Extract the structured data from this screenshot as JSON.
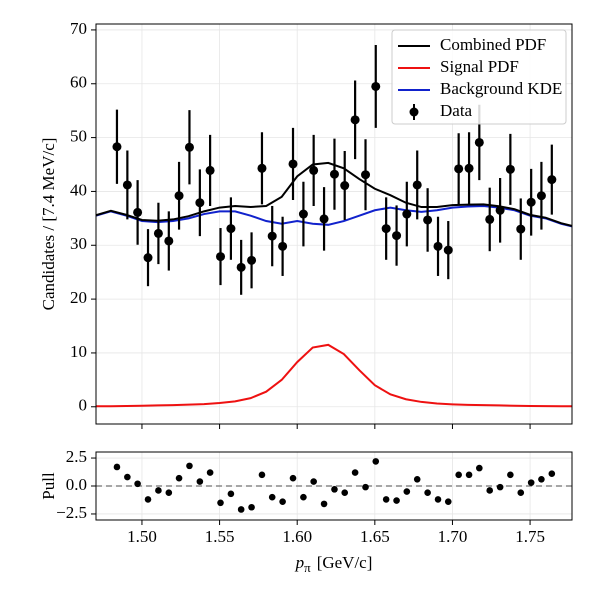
{
  "chart_data": [
    {
      "type": "fit",
      "ylabel": "Candidates / [7.4 MeV/c]",
      "xlim": [
        1.4704,
        1.777
      ],
      "ylim": [
        -3.2,
        71.1
      ],
      "yticks": [
        0,
        10,
        20,
        30,
        40,
        50,
        60,
        70
      ],
      "grid": true,
      "legend": "upper right",
      "x": [
        1.4704,
        1.48,
        1.49,
        1.5,
        1.51,
        1.52,
        1.53,
        1.54,
        1.55,
        1.56,
        1.57,
        1.58,
        1.59,
        1.6,
        1.61,
        1.62,
        1.63,
        1.64,
        1.65,
        1.66,
        1.67,
        1.68,
        1.69,
        1.7,
        1.71,
        1.72,
        1.73,
        1.74,
        1.75,
        1.76,
        1.77,
        1.777
      ],
      "series": [
        {
          "name": "Combined PDF",
          "color": "#000000",
          "values": [
            35.6,
            36.4,
            35.65,
            34.7,
            34.55,
            34.8,
            35.4,
            36.3,
            37.0,
            37.3,
            37.1,
            37.3,
            39.0,
            42.8,
            45.0,
            45.3,
            44.3,
            42.3,
            40.5,
            39.3,
            37.9,
            37.1,
            37.1,
            37.45,
            37.55,
            37.6,
            37.25,
            36.7,
            35.65,
            35.12,
            34.1,
            33.6
          ]
        },
        {
          "name": "Signal PDF",
          "color": "#ee1111",
          "values": [
            0.1,
            0.1,
            0.15,
            0.2,
            0.25,
            0.3,
            0.4,
            0.5,
            0.7,
            1.0,
            1.6,
            2.8,
            5.0,
            8.3,
            11.0,
            11.5,
            9.8,
            6.8,
            4.0,
            2.3,
            1.4,
            0.9,
            0.6,
            0.45,
            0.35,
            0.3,
            0.25,
            0.2,
            0.15,
            0.12,
            0.1,
            0.1
          ]
        },
        {
          "name": "Background KDE",
          "color": "#1122cc",
          "values": [
            35.5,
            36.3,
            35.5,
            34.5,
            34.3,
            34.5,
            35.0,
            35.8,
            36.3,
            36.3,
            35.5,
            34.5,
            34.0,
            34.5,
            34.0,
            33.8,
            34.5,
            35.5,
            36.5,
            37.0,
            36.5,
            36.2,
            36.5,
            37.0,
            37.2,
            37.3,
            37.0,
            36.5,
            35.5,
            35.0,
            34.0,
            33.5
          ]
        }
      ],
      "points": {
        "name": "Data",
        "color": "#000000",
        "x": [
          1.4839,
          1.4906,
          1.4972,
          1.5039,
          1.5106,
          1.5173,
          1.5239,
          1.5306,
          1.5373,
          1.5439,
          1.5506,
          1.5573,
          1.5639,
          1.5706,
          1.5773,
          1.5839,
          1.5906,
          1.5973,
          1.604,
          1.6106,
          1.6173,
          1.624,
          1.6306,
          1.6373,
          1.644,
          1.6506,
          1.6573,
          1.664,
          1.6706,
          1.6773,
          1.684,
          1.6907,
          1.6973,
          1.704,
          1.7107,
          1.7173,
          1.724,
          1.7307,
          1.7373,
          1.744,
          1.7507,
          1.7573,
          1.764
        ],
        "values": [
          48.3,
          41.2,
          36.1,
          27.7,
          32.2,
          30.8,
          39.2,
          48.2,
          37.9,
          43.9,
          27.9,
          33.1,
          25.9,
          27.2,
          44.3,
          31.7,
          29.8,
          45.1,
          35.8,
          43.9,
          34.9,
          43.2,
          41.1,
          53.3,
          43.1,
          59.5,
          33.1,
          31.8,
          35.8,
          41.2,
          34.7,
          29.8,
          29.1,
          44.2,
          44.3,
          49.1,
          34.8,
          36.5,
          44.1,
          33.0,
          38.0,
          39.2,
          42.2
        ],
        "errors": [
          6.9,
          6.4,
          6.0,
          5.3,
          5.7,
          5.5,
          6.3,
          6.9,
          6.2,
          6.6,
          5.3,
          5.8,
          5.1,
          5.2,
          6.7,
          5.6,
          5.5,
          6.7,
          6.0,
          6.6,
          5.9,
          6.6,
          6.4,
          7.3,
          6.6,
          7.7,
          5.8,
          5.6,
          6.0,
          6.4,
          5.9,
          5.5,
          5.4,
          6.6,
          6.7,
          7.0,
          5.9,
          6.0,
          6.6,
          5.7,
          6.2,
          6.3,
          6.5
        ]
      }
    },
    {
      "type": "scatter",
      "ylabel": "Pull",
      "xlabel": {
        "symbol": "p",
        "subscript": "π",
        "unit": "[GeV/c]"
      },
      "xlim": [
        1.4704,
        1.777
      ],
      "ylim": [
        -3.04,
        3.04
      ],
      "xticks": [
        {
          "value": 1.5,
          "label": "1.50"
        },
        {
          "value": 1.55,
          "label": "1.55"
        },
        {
          "value": 1.6,
          "label": "1.60"
        },
        {
          "value": 1.65,
          "label": "1.65"
        },
        {
          "value": 1.7,
          "label": "1.70"
        },
        {
          "value": 1.75,
          "label": "1.75"
        }
      ],
      "yticks": [
        {
          "value": -2.5,
          "label": "−2.5"
        },
        {
          "value": 0,
          "label": "0.0"
        },
        {
          "value": 2.5,
          "label": "2.5"
        }
      ],
      "grid": true,
      "color": "#000000",
      "x": [
        1.4839,
        1.4906,
        1.4972,
        1.5039,
        1.5106,
        1.5173,
        1.5239,
        1.5306,
        1.5373,
        1.5439,
        1.5506,
        1.5573,
        1.5639,
        1.5706,
        1.5773,
        1.5839,
        1.5906,
        1.5973,
        1.604,
        1.6106,
        1.6173,
        1.624,
        1.6306,
        1.6373,
        1.644,
        1.6506,
        1.6573,
        1.664,
        1.6706,
        1.6773,
        1.684,
        1.6907,
        1.6973,
        1.704,
        1.7107,
        1.7173,
        1.724,
        1.7307,
        1.7373,
        1.744,
        1.7507,
        1.7573,
        1.764
      ],
      "values": [
        1.7,
        0.8,
        0.2,
        -1.2,
        -0.4,
        -0.6,
        0.7,
        1.8,
        0.4,
        1.2,
        -1.5,
        -0.7,
        -2.1,
        -1.9,
        1.0,
        -1.0,
        -1.4,
        0.7,
        -1.0,
        0.4,
        -1.6,
        -0.3,
        -0.6,
        1.2,
        -0.1,
        2.2,
        -1.2,
        -1.3,
        -0.5,
        0.6,
        -0.6,
        -1.2,
        -1.4,
        1.0,
        1.0,
        1.6,
        -0.4,
        -0.1,
        1.0,
        -0.6,
        0.3,
        0.6,
        1.1
      ]
    }
  ]
}
